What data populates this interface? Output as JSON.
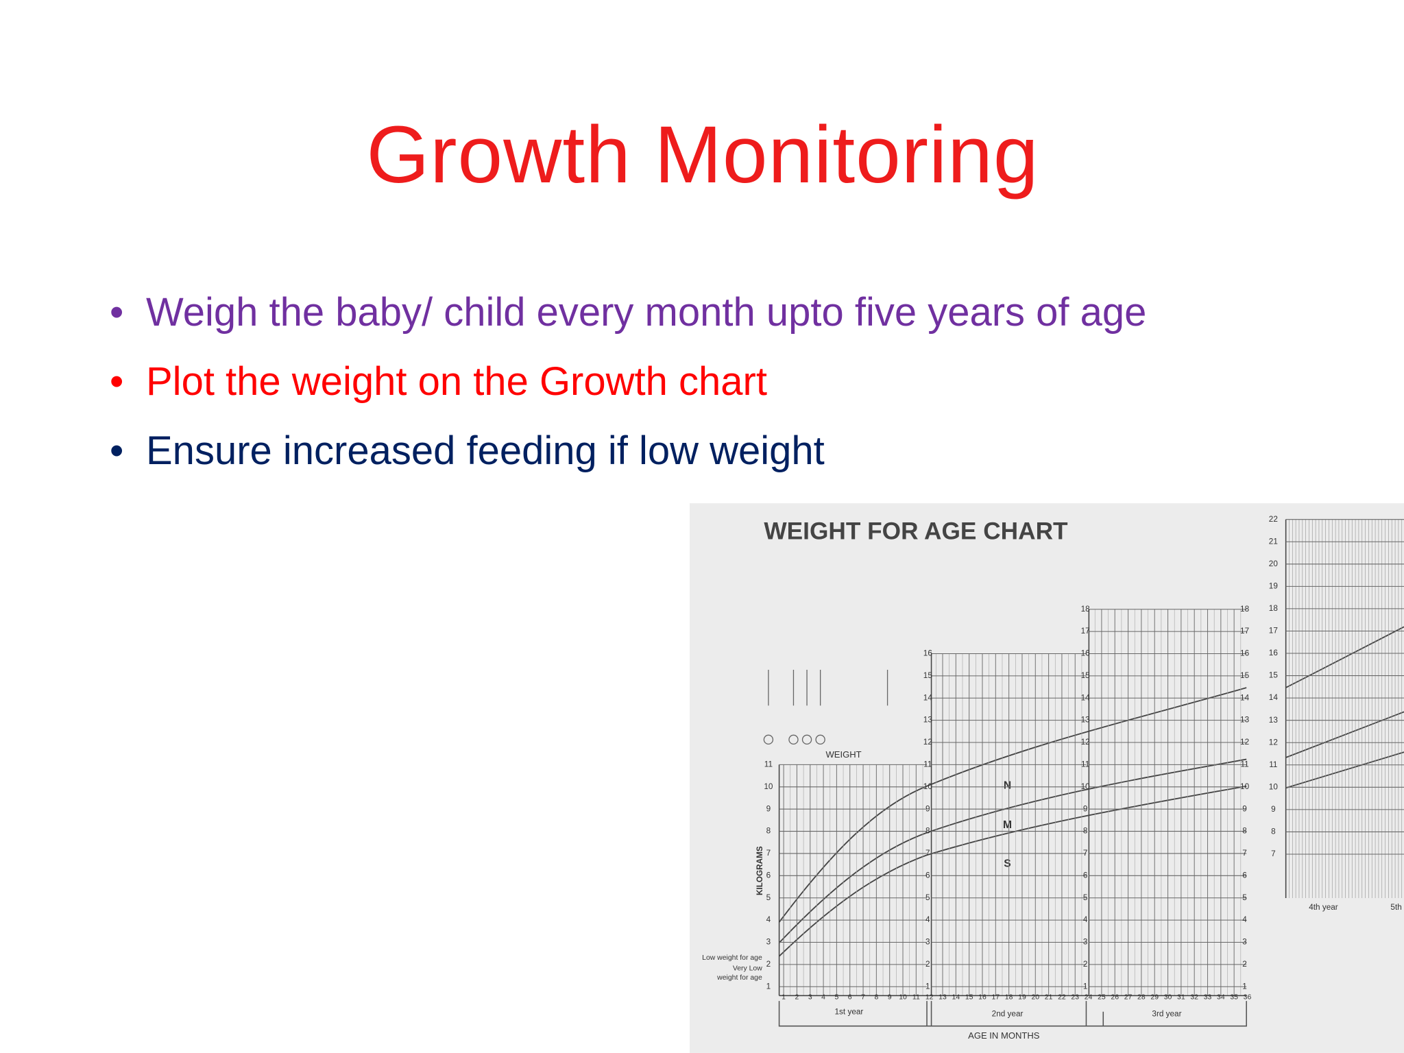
{
  "slide": {
    "title": "Growth Monitoring",
    "bullets": [
      "Weigh the baby/ child every month upto five years of age",
      "Plot the weight on the Growth chart",
      "Ensure increased feeding if low weight"
    ],
    "weight_chart": {
      "title": "WEIGHT FOR AGE CHART",
      "weight_label": "WEIGHT",
      "y_label": "KILOGRAMS",
      "low_label": "Low weight for age",
      "very_low_label": [
        "Very Low",
        "weight for age"
      ],
      "curve_labels": [
        "N",
        "M",
        "S"
      ],
      "x_label": "AGE IN MONTHS",
      "years": [
        "1st year",
        "2nd year",
        "3rd year",
        "4th year",
        "5th"
      ],
      "months": [
        1,
        2,
        3,
        4,
        5,
        6,
        7,
        8,
        9,
        10,
        11,
        12,
        13,
        14,
        15,
        16,
        17,
        18,
        19,
        20,
        21,
        22,
        23,
        24,
        25,
        26,
        27,
        28,
        29,
        30,
        31,
        32,
        33,
        34,
        35,
        36
      ],
      "panels": [
        {
          "ticks": [
            1,
            2,
            3,
            4,
            5,
            6,
            7,
            8,
            9,
            10,
            11
          ]
        },
        {
          "ticks": [
            1,
            2,
            3,
            4,
            5,
            6,
            7,
            8,
            9,
            10,
            11,
            12,
            13,
            14,
            15,
            16
          ]
        },
        {
          "ticks": [
            1,
            2,
            3,
            4,
            5,
            6,
            7,
            8,
            9,
            10,
            11,
            12,
            13,
            14,
            15,
            16,
            17,
            18
          ]
        },
        {
          "ticks": [
            7,
            8,
            9,
            10,
            11,
            12,
            13,
            14,
            15,
            16,
            17,
            18,
            19,
            20,
            21,
            22
          ]
        }
      ]
    }
  }
}
